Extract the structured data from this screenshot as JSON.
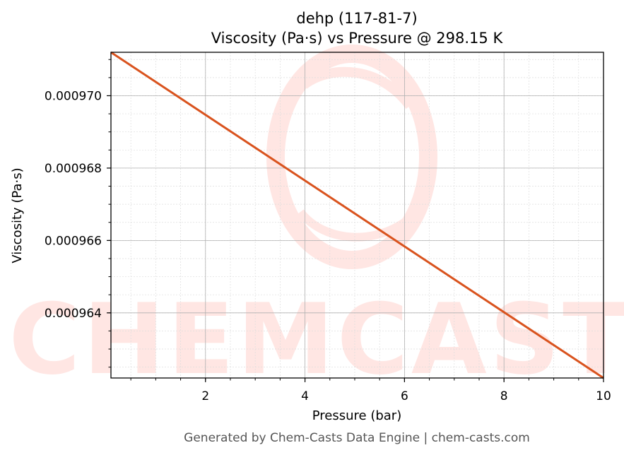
{
  "chart_data": {
    "type": "line",
    "title": "dehp (117-81-7)",
    "subtitle": "Viscosity (Pa·s) vs Pressure @ 298.15 K",
    "xlabel": "Pressure (bar)",
    "ylabel": "Viscosity (Pa·s)",
    "xlim": [
      0.1,
      10
    ],
    "ylim": [
      0.0009622,
      0.0009712
    ],
    "x_ticks": [
      2,
      4,
      6,
      8,
      10
    ],
    "x_tick_labels": [
      "2",
      "4",
      "6",
      "8",
      "10"
    ],
    "y_ticks": [
      0.000964,
      0.000966,
      0.000968,
      0.00097
    ],
    "y_tick_labels": [
      "0.000964",
      "0.000966",
      "0.000968",
      "0.000970"
    ],
    "grid": true,
    "series": [
      {
        "x": [
          0.1,
          10
        ],
        "y": [
          0.0009712,
          0.0009622
        ]
      }
    ],
    "colors": {
      "line": "#d9531e",
      "major_grid": "#b0b0b0",
      "minor_grid": "#dddddd",
      "watermark": "#ffe6e3"
    }
  },
  "footer": "Generated by Chem-Casts Data Engine | chem-casts.com",
  "watermark": {
    "text": "CHEMCASTS"
  }
}
